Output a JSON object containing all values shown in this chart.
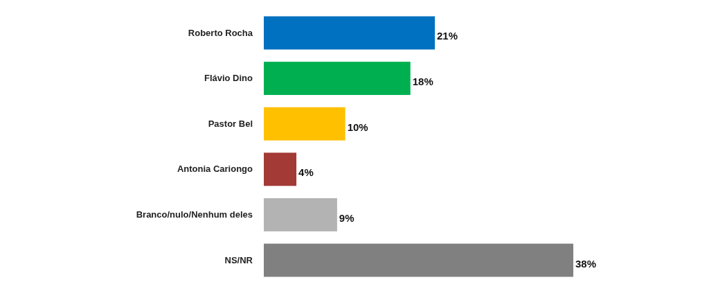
{
  "chart_data": {
    "type": "bar",
    "orientation": "horizontal",
    "categories": [
      "Roberto Rocha",
      "Flávio Dino",
      "Pastor Bel",
      "Antonia Cariongo",
      "Branco/nulo/Nenhum deles",
      "NS/NR"
    ],
    "values": [
      21,
      18,
      10,
      4,
      9,
      38
    ],
    "colors": [
      "#0070c0",
      "#00b050",
      "#ffc000",
      "#a33a36",
      "#b3b3b3",
      "#808080"
    ],
    "value_labels": [
      "21%",
      "18%",
      "10%",
      "4%",
      "9%",
      "38%"
    ]
  }
}
